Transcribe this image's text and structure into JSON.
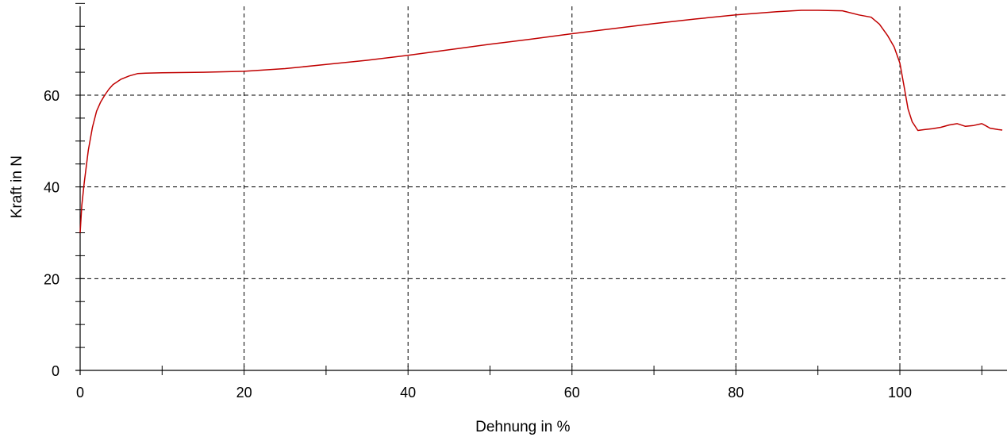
{
  "chart_data": {
    "type": "line",
    "title": "",
    "xlabel": "Dehnung in %",
    "ylabel": "Kraft in N",
    "xlim": [
      0,
      112.5
    ],
    "ylim": [
      0,
      80
    ],
    "x_ticks": [
      0,
      20,
      40,
      60,
      80,
      100
    ],
    "x_tick_labels": [
      "0",
      "20",
      "40",
      "60",
      "80",
      "100"
    ],
    "y_ticks": [
      0,
      20,
      40,
      60
    ],
    "y_tick_labels": [
      "0",
      "20",
      "40",
      "60"
    ],
    "grid": true,
    "legend": "none",
    "series": [
      {
        "color": "#c00000",
        "x": [
          0,
          0.2,
          0.5,
          1,
          1.5,
          2,
          2.5,
          3,
          3.5,
          4,
          5,
          6,
          7,
          8,
          10,
          15,
          20,
          25,
          30,
          35,
          40,
          45,
          50,
          55,
          60,
          65,
          70,
          75,
          80,
          85,
          88,
          90,
          93,
          95,
          96.5,
          97.5,
          98.5,
          99.3,
          100,
          100.5,
          101,
          101.5,
          102.2,
          103,
          104,
          105,
          106,
          107,
          108,
          109,
          110,
          110.5,
          111,
          112,
          112.5
        ],
        "y": [
          30,
          36,
          41,
          48,
          53,
          56.5,
          58.5,
          60,
          61.3,
          62.3,
          63.5,
          64.2,
          64.7,
          64.8,
          64.9,
          65,
          65.2,
          65.8,
          66.7,
          67.6,
          68.7,
          69.9,
          71.1,
          72.2,
          73.4,
          74.5,
          75.6,
          76.6,
          77.5,
          78.2,
          78.5,
          78.5,
          78.4,
          77.5,
          77,
          75.5,
          73,
          70.5,
          67,
          62,
          57,
          54.2,
          52.3,
          52.5,
          52.7,
          53,
          53.5,
          53.8,
          53.2,
          53.4,
          53.8,
          53.3,
          52.8,
          52.5,
          52.4
        ]
      }
    ]
  }
}
